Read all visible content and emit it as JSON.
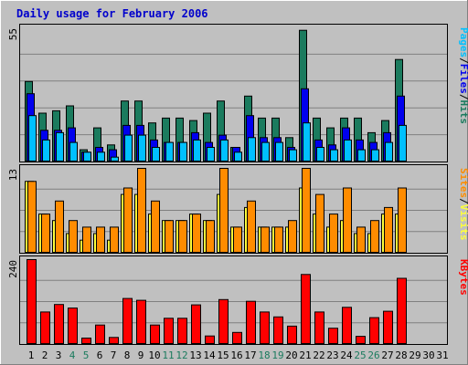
{
  "title": "Daily usage for February 2006",
  "colors": {
    "hits": "#1b7b5e",
    "files": "#0000ee",
    "pages": "#00c0ff",
    "visits": "#ffff3a",
    "sites": "#ff8c00",
    "kbytes": "#ff0000",
    "title": "#0000cc",
    "weekend": "#1b7b5e",
    "background": "#c0c0c0"
  },
  "chart_data": [
    {
      "type": "bar",
      "panel": "hits-files-pages",
      "ymax_label": "55",
      "categories": [
        "1",
        "2",
        "3",
        "4",
        "5",
        "6",
        "7",
        "8",
        "9",
        "10",
        "11",
        "12",
        "13",
        "14",
        "15",
        "16",
        "17",
        "18",
        "19",
        "20",
        "21",
        "22",
        "23",
        "24",
        "25",
        "26",
        "27",
        "28",
        "29",
        "30",
        "31"
      ],
      "weekend_days": [
        "4",
        "5",
        "11",
        "12",
        "18",
        "19",
        "25",
        "26"
      ],
      "ylim": [
        0,
        55
      ],
      "series_labels": [
        "Pages",
        "Files",
        "Hits"
      ],
      "series_seps": [
        "/",
        "/"
      ],
      "series": [
        {
          "name": "Hits",
          "values": [
            33,
            20,
            21,
            23,
            5,
            14,
            7,
            25,
            25,
            16,
            18,
            18,
            17,
            20,
            25,
            6,
            27,
            18,
            18,
            10,
            54,
            18,
            14,
            18,
            18,
            12,
            17,
            42,
            0,
            0,
            0
          ]
        },
        {
          "name": "Files",
          "values": [
            28,
            13,
            13,
            14,
            4,
            6,
            5,
            15,
            15,
            9,
            8,
            8,
            12,
            8,
            11,
            6,
            19,
            10,
            10,
            6,
            30,
            9,
            7,
            14,
            9,
            8,
            12,
            27,
            0,
            0,
            0
          ]
        },
        {
          "name": "Pages",
          "values": [
            19,
            9,
            12,
            8,
            4,
            4,
            2,
            11,
            11,
            6,
            8,
            8,
            9,
            6,
            9,
            4,
            10,
            8,
            8,
            5,
            16,
            6,
            5,
            9,
            5,
            5,
            8,
            15,
            0,
            0,
            0
          ]
        }
      ]
    },
    {
      "type": "bar",
      "panel": "visits-sites",
      "ymax_label": "13",
      "categories": [
        "1",
        "2",
        "3",
        "4",
        "5",
        "6",
        "7",
        "8",
        "9",
        "10",
        "11",
        "12",
        "13",
        "14",
        "15",
        "16",
        "17",
        "18",
        "19",
        "20",
        "21",
        "22",
        "23",
        "24",
        "25",
        "26",
        "27",
        "28",
        "29",
        "30",
        "31"
      ],
      "ylim": [
        0,
        13
      ],
      "series_labels": [
        "Sites",
        "Visits"
      ],
      "series_seps": [
        "/"
      ],
      "series": [
        {
          "name": "Visits",
          "values": [
            11,
            6,
            5,
            3,
            2,
            3,
            2,
            9,
            9,
            6,
            5,
            5,
            6,
            5,
            9,
            4,
            7,
            4,
            4,
            4,
            10,
            6,
            4,
            5,
            3,
            3,
            6,
            6,
            0,
            0,
            0
          ]
        },
        {
          "name": "Sites",
          "values": [
            11,
            6,
            8,
            5,
            4,
            4,
            4,
            10,
            13,
            8,
            5,
            5,
            6,
            5,
            13,
            4,
            8,
            4,
            4,
            5,
            13,
            9,
            6,
            10,
            4,
            5,
            7,
            10,
            0,
            0,
            0
          ]
        }
      ]
    },
    {
      "type": "bar",
      "panel": "kbytes",
      "ymax_label": "240",
      "categories": [
        "1",
        "2",
        "3",
        "4",
        "5",
        "6",
        "7",
        "8",
        "9",
        "10",
        "11",
        "12",
        "13",
        "14",
        "15",
        "16",
        "17",
        "18",
        "19",
        "20",
        "21",
        "22",
        "23",
        "24",
        "25",
        "26",
        "27",
        "28",
        "29",
        "30",
        "31"
      ],
      "ylim": [
        0,
        240
      ],
      "series_labels": [
        "KBytes"
      ],
      "series_seps": [],
      "series": [
        {
          "name": "KBytes",
          "values": [
            240,
            92,
            113,
            103,
            18,
            55,
            20,
            130,
            125,
            55,
            74,
            74,
            112,
            24,
            127,
            34,
            122,
            92,
            78,
            52,
            198,
            92,
            46,
            105,
            23,
            76,
            94,
            187,
            0,
            0,
            0
          ]
        }
      ]
    }
  ]
}
